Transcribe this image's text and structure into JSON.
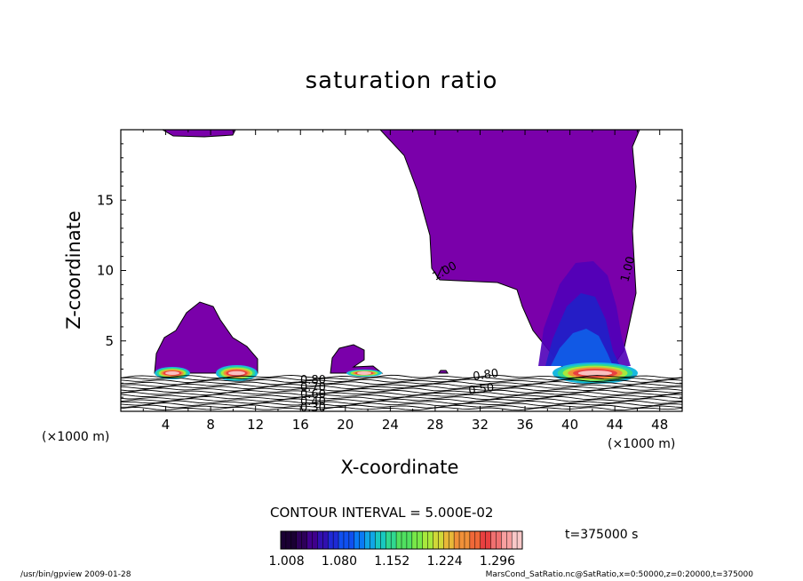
{
  "chart_data": {
    "type": "contour",
    "title": "saturation ratio",
    "xlabel": "X-coordinate",
    "ylabel": "Z-coordinate",
    "x_unit_label": "(×1000 m)",
    "xlim": [
      0,
      50
    ],
    "ylim": [
      0,
      20
    ],
    "x_ticks": [
      4,
      8,
      12,
      16,
      20,
      24,
      28,
      32,
      36,
      40,
      44,
      48
    ],
    "y_ticks": [
      5,
      10,
      15
    ],
    "contour_interval_label": "CONTOUR INTERVAL = 5.000E-02",
    "contour_labels": [
      "1.00",
      "1.00",
      "0.80",
      "0.50",
      "0.80",
      "0.70",
      "0.60",
      "0.40",
      "0.30"
    ],
    "colorbar": {
      "min": 1.0,
      "max": 1.33,
      "tick_labels": [
        "1.008",
        "1.080",
        "1.152",
        "1.224",
        "1.296"
      ],
      "colors": [
        "#1a0033",
        "#2d0059",
        "#40008c",
        "#3010b0",
        "#1e2ad6",
        "#1050f0",
        "#0a7af5",
        "#10a6e6",
        "#18c8c0",
        "#30d890",
        "#50e060",
        "#78e848",
        "#a8e83c",
        "#d0d838",
        "#e8b838",
        "#f09038",
        "#f06838",
        "#e84040",
        "#f07070",
        "#f8a0a0",
        "#f8c8c8"
      ]
    },
    "fill_color": "#7a00aa",
    "time_label": "t=375000 s"
  },
  "footer": {
    "left": "/usr/bin/gpview  2009-01-28",
    "right": "MarsCond_SatRatio.nc@SatRatio,x=0:50000,z=0:20000,t=375000"
  }
}
